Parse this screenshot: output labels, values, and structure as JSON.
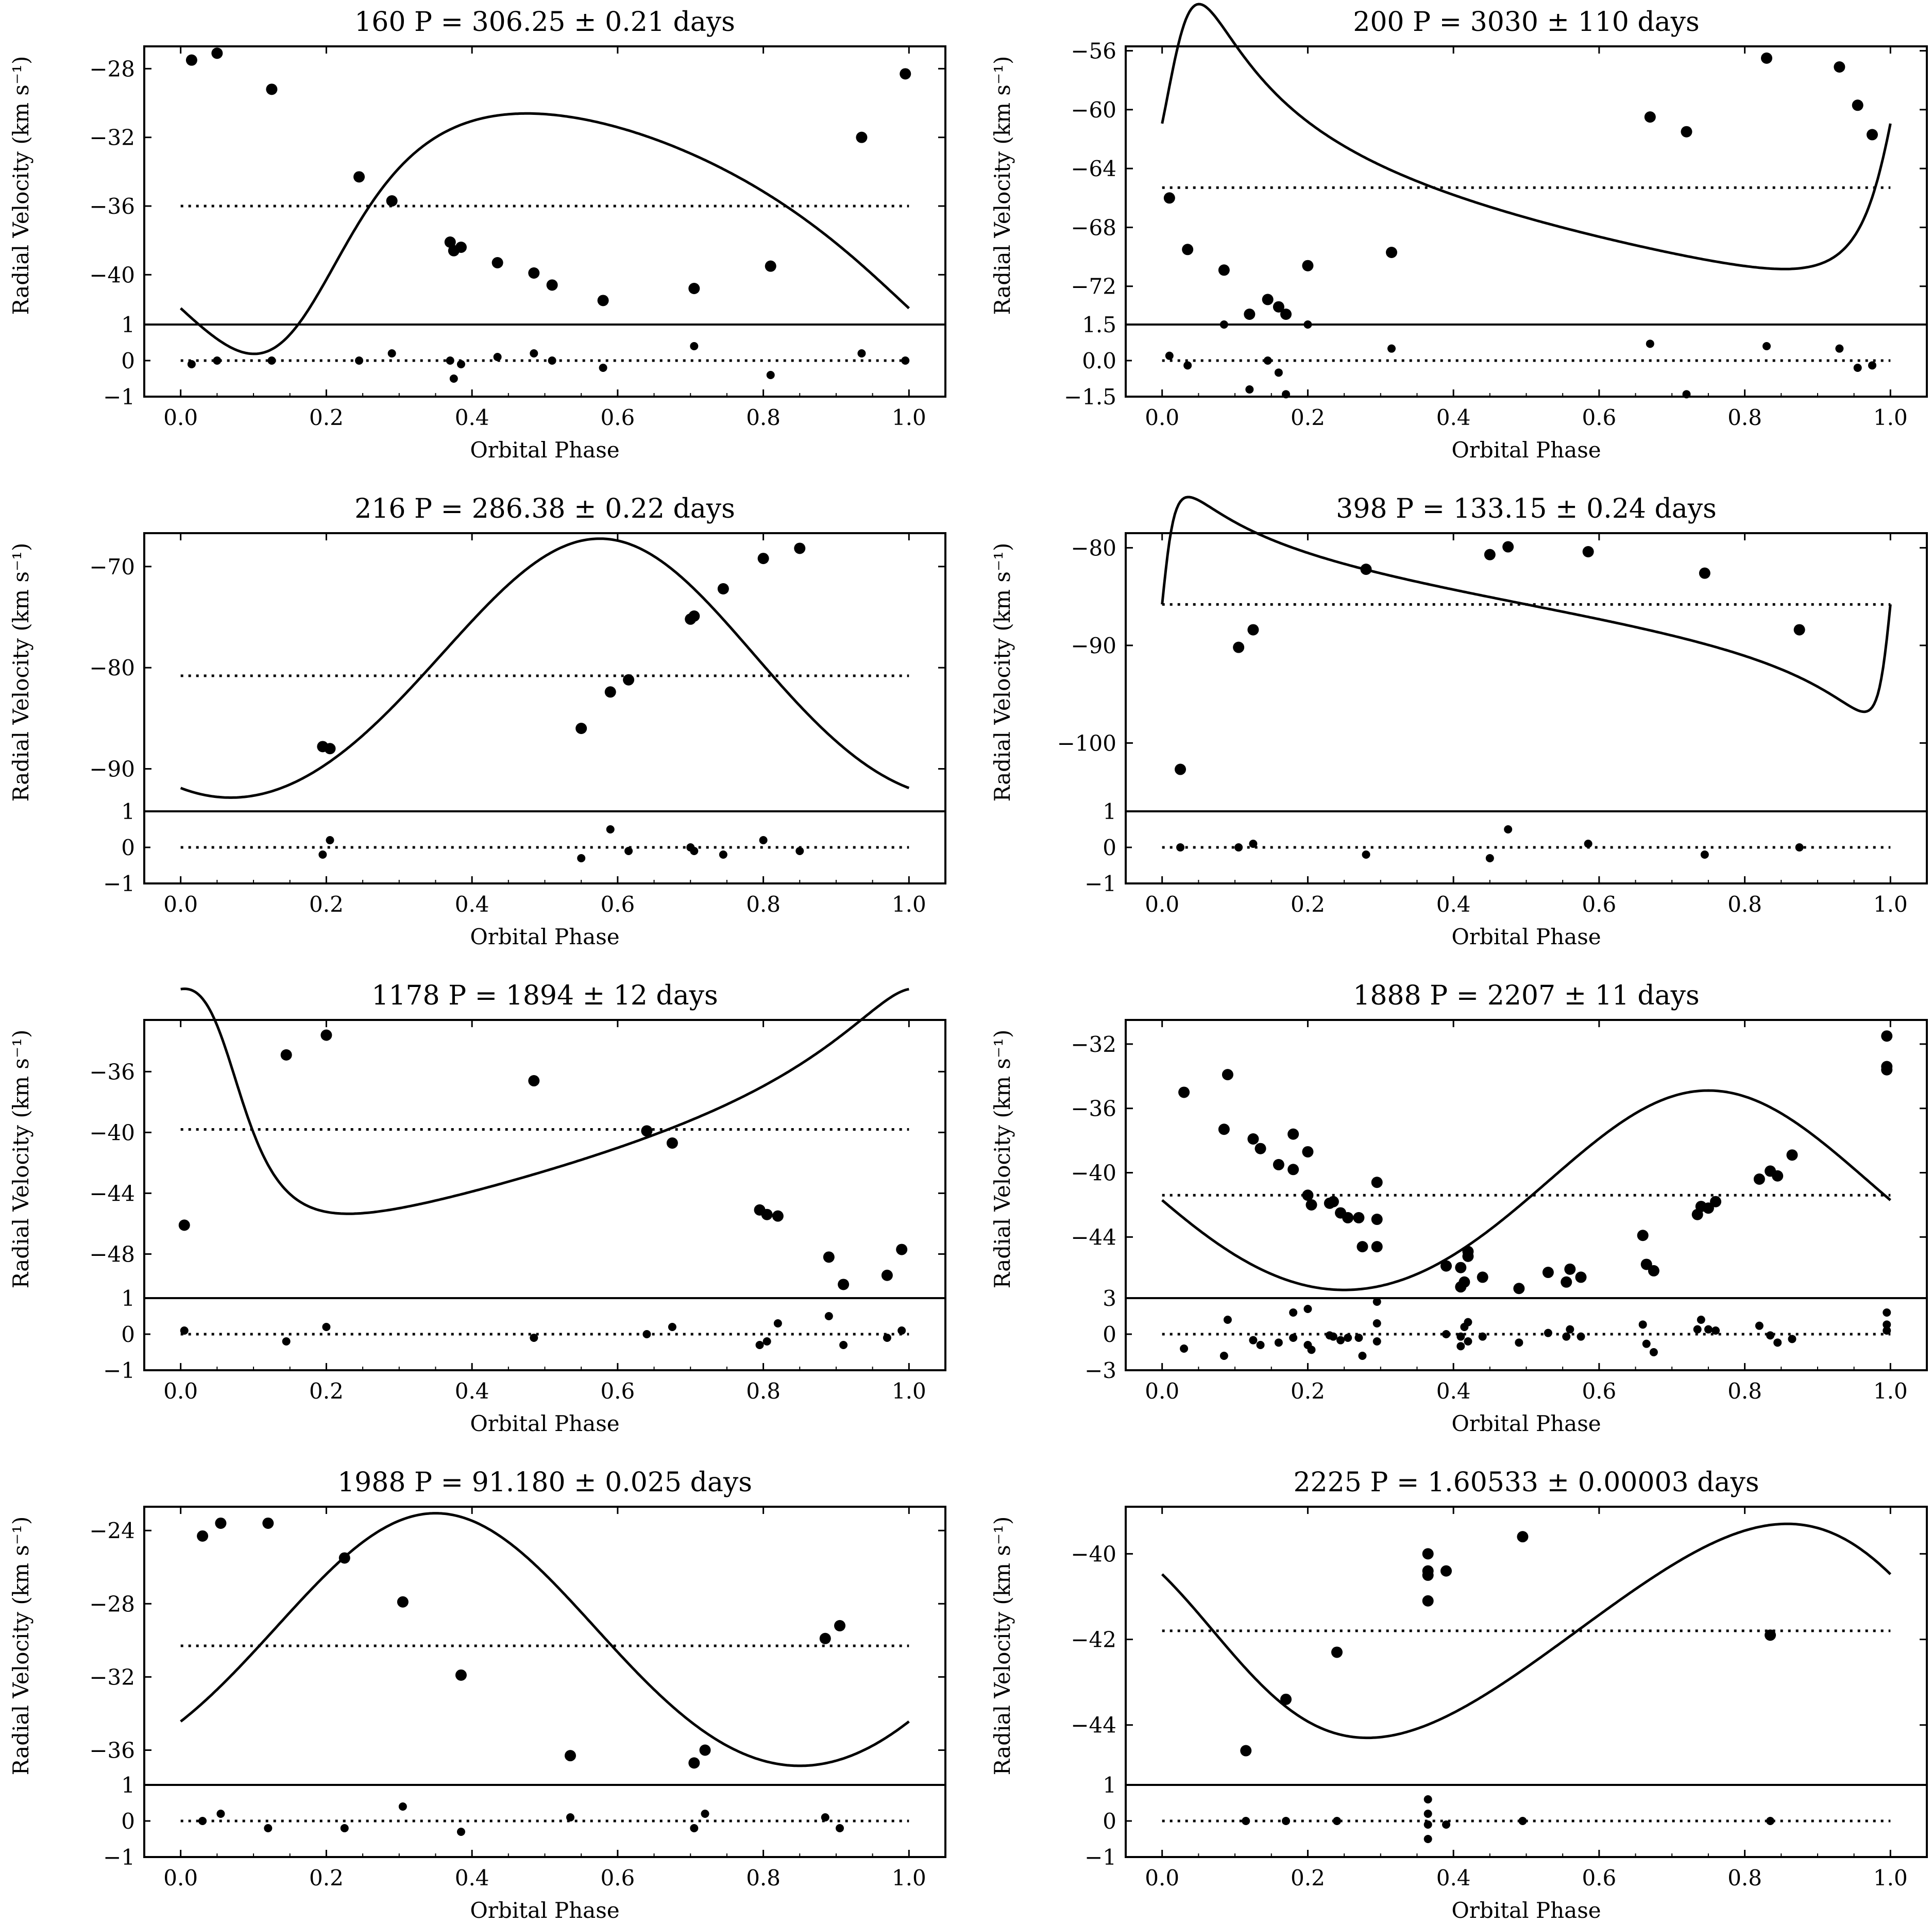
{
  "figure": {
    "xlabel": "Orbital Phase",
    "ylabel": "Radial Velocity (km s⁻¹)",
    "xticks": [
      0.0,
      0.2,
      0.4,
      0.6,
      0.8,
      1.0
    ]
  },
  "chart_data": [
    {
      "type": "scatter",
      "title": "160 P =  306.25  ±  0.21  days",
      "star": "160",
      "period": "306.25 ± 0.21 days",
      "xlabel": "Orbital Phase",
      "ylabel": "Radial Velocity (km s⁻¹)",
      "xlim": [
        -0.05,
        1.05
      ],
      "ylim": [
        -42.9,
        -26.7
      ],
      "yticks": [
        -40,
        -36,
        -32,
        -28
      ],
      "systemic_velocity": -36.0,
      "curve": {
        "K": 7.0,
        "e": 0.3,
        "omega_deg": 220,
        "phi_peri": 0.16
      },
      "points": [
        [
          0.015,
          -27.5
        ],
        [
          0.05,
          -27.1
        ],
        [
          0.125,
          -29.2
        ],
        [
          0.245,
          -34.3
        ],
        [
          0.29,
          -35.7
        ],
        [
          0.37,
          -38.1
        ],
        [
          0.375,
          -38.6
        ],
        [
          0.385,
          -38.4
        ],
        [
          0.435,
          -39.3
        ],
        [
          0.485,
          -39.9
        ],
        [
          0.51,
          -40.6
        ],
        [
          0.58,
          -41.5
        ],
        [
          0.705,
          -40.8
        ],
        [
          0.81,
          -39.5
        ],
        [
          0.935,
          -32.0
        ],
        [
          0.995,
          -28.3
        ]
      ],
      "residual_ylim": [
        -1,
        1
      ],
      "residual_yticks": [
        -1,
        0,
        1
      ],
      "residuals": [
        [
          0.015,
          -0.1
        ],
        [
          0.05,
          0.0
        ],
        [
          0.125,
          0.0
        ],
        [
          0.245,
          0.0
        ],
        [
          0.29,
          0.2
        ],
        [
          0.37,
          0.0
        ],
        [
          0.375,
          -0.5
        ],
        [
          0.385,
          -0.1
        ],
        [
          0.435,
          0.1
        ],
        [
          0.485,
          0.2
        ],
        [
          0.51,
          0.0
        ],
        [
          0.58,
          -0.2
        ],
        [
          0.705,
          0.4
        ],
        [
          0.81,
          -0.4
        ],
        [
          0.935,
          0.2
        ],
        [
          0.995,
          0.0
        ]
      ]
    },
    {
      "type": "scatter",
      "title": "200 P =  3030  ±  110  days",
      "star": "200",
      "period": "3030 ± 110 days",
      "xlabel": "Orbital Phase",
      "ylabel": "Radial Velocity (km s⁻¹)",
      "xlim": [
        -0.05,
        1.05
      ],
      "ylim": [
        -74.6,
        -55.7
      ],
      "yticks": [
        -72,
        -68,
        -64,
        -60,
        -56
      ],
      "systemic_velocity": -65.3,
      "curve": {
        "K": 9.0,
        "e": 0.6,
        "omega_deg": 310,
        "phi_peri": 0.02
      },
      "points": [
        [
          0.01,
          -66.0
        ],
        [
          0.035,
          -69.5
        ],
        [
          0.085,
          -70.9
        ],
        [
          0.12,
          -73.9
        ],
        [
          0.145,
          -72.9
        ],
        [
          0.16,
          -73.4
        ],
        [
          0.17,
          -73.9
        ],
        [
          0.2,
          -70.6
        ],
        [
          0.315,
          -69.7
        ],
        [
          0.67,
          -60.5
        ],
        [
          0.72,
          -61.5
        ],
        [
          0.83,
          -56.5
        ],
        [
          0.93,
          -57.1
        ],
        [
          0.955,
          -59.7
        ],
        [
          0.975,
          -61.7
        ]
      ],
      "residual_ylim": [
        -1.5,
        1.5
      ],
      "residual_yticks": [
        -1.5,
        0.0,
        1.5
      ],
      "residuals": [
        [
          0.01,
          0.2
        ],
        [
          0.035,
          -0.2
        ],
        [
          0.085,
          1.5
        ],
        [
          0.12,
          -1.2
        ],
        [
          0.145,
          0.0
        ],
        [
          0.16,
          -0.5
        ],
        [
          0.17,
          -1.4
        ],
        [
          0.2,
          1.5
        ],
        [
          0.315,
          0.5
        ],
        [
          0.67,
          0.7
        ],
        [
          0.72,
          -1.4
        ],
        [
          0.83,
          0.6
        ],
        [
          0.93,
          0.5
        ],
        [
          0.955,
          -0.3
        ],
        [
          0.975,
          -0.2
        ]
      ]
    },
    {
      "type": "scatter",
      "title": "216 P =  286.38  ±  0.22  days",
      "star": "216",
      "period": "286.38 ± 0.22 days",
      "xlabel": "Orbital Phase",
      "ylabel": "Radial Velocity (km s⁻¹)",
      "xlim": [
        -0.05,
        1.05
      ],
      "ylim": [
        -94.2,
        -66.7
      ],
      "yticks": [
        -90,
        -80,
        -70
      ],
      "systemic_velocity": -80.8,
      "curve": {
        "K": 12.8,
        "e": 0.06,
        "omega_deg": 10,
        "phi_peri": 0.6
      },
      "points": [
        [
          0.195,
          -87.8
        ],
        [
          0.205,
          -88.0
        ],
        [
          0.55,
          -86.0
        ],
        [
          0.59,
          -82.4
        ],
        [
          0.615,
          -81.2
        ],
        [
          0.7,
          -75.2
        ],
        [
          0.705,
          -74.9
        ],
        [
          0.745,
          -72.2
        ],
        [
          0.8,
          -69.2
        ],
        [
          0.85,
          -68.2
        ]
      ],
      "residual_ylim": [
        -1,
        1
      ],
      "residual_yticks": [
        -1,
        0,
        1
      ],
      "residuals": [
        [
          0.195,
          -0.2
        ],
        [
          0.205,
          0.2
        ],
        [
          0.55,
          -0.3
        ],
        [
          0.59,
          0.5
        ],
        [
          0.615,
          -0.1
        ],
        [
          0.7,
          0.0
        ],
        [
          0.705,
          -0.1
        ],
        [
          0.745,
          -0.2
        ],
        [
          0.8,
          0.2
        ],
        [
          0.85,
          -0.1
        ]
      ]
    },
    {
      "type": "scatter",
      "title": "398 P =  133.15  ±  0.24  days",
      "star": "398",
      "period": "133.15 ± 0.24 days",
      "xlabel": "Orbital Phase",
      "ylabel": "Radial Velocity (km s⁻¹)",
      "xlim": [
        -0.05,
        1.05
      ],
      "ylim": [
        -107.0,
        -78.5
      ],
      "yticks": [
        -100,
        -90,
        -80
      ],
      "systemic_velocity": -85.8,
      "curve": {
        "K": 11.0,
        "e": 0.75,
        "omega_deg": 270,
        "phi_peri": 0.0
      },
      "points": [
        [
          0.025,
          -102.7
        ],
        [
          0.105,
          -90.2
        ],
        [
          0.125,
          -88.4
        ],
        [
          0.28,
          -82.2
        ],
        [
          0.45,
          -80.7
        ],
        [
          0.475,
          -79.9
        ],
        [
          0.585,
          -80.4
        ],
        [
          0.745,
          -82.6
        ],
        [
          0.875,
          -88.4
        ]
      ],
      "residual_ylim": [
        -1,
        1
      ],
      "residual_yticks": [
        -1,
        0,
        1
      ],
      "residuals": [
        [
          0.025,
          0.0
        ],
        [
          0.105,
          0.0
        ],
        [
          0.125,
          0.1
        ],
        [
          0.28,
          -0.2
        ],
        [
          0.45,
          -0.3
        ],
        [
          0.475,
          0.5
        ],
        [
          0.585,
          0.1
        ],
        [
          0.745,
          -0.2
        ],
        [
          0.875,
          0.0
        ]
      ]
    },
    {
      "type": "scatter",
      "title": "1178 P =  1894  ±  12  days",
      "star": "1178",
      "period": "1894 ± 12 days",
      "xlabel": "Orbital Phase",
      "ylabel": "Radial Velocity (km s⁻¹)",
      "xlim": [
        -0.05,
        1.05
      ],
      "ylim": [
        -50.9,
        -32.6
      ],
      "yticks": [
        -48,
        -44,
        -40,
        -36
      ],
      "systemic_velocity": -39.8,
      "curve": {
        "K": 7.4,
        "e": 0.5,
        "omega_deg": 60,
        "phi_peri": 0.06
      },
      "points": [
        [
          0.005,
          -46.1
        ],
        [
          0.145,
          -34.9
        ],
        [
          0.2,
          -33.6
        ],
        [
          0.485,
          -36.6
        ],
        [
          0.64,
          -39.9
        ],
        [
          0.675,
          -40.7
        ],
        [
          0.795,
          -45.1
        ],
        [
          0.805,
          -45.4
        ],
        [
          0.82,
          -45.5
        ],
        [
          0.89,
          -48.2
        ],
        [
          0.91,
          -50.0
        ],
        [
          0.97,
          -49.4
        ],
        [
          0.99,
          -47.7
        ]
      ],
      "residual_ylim": [
        -1,
        1
      ],
      "residual_yticks": [
        -1,
        0,
        1
      ],
      "residuals": [
        [
          0.005,
          0.1
        ],
        [
          0.145,
          -0.2
        ],
        [
          0.2,
          0.2
        ],
        [
          0.485,
          -0.1
        ],
        [
          0.64,
          0.0
        ],
        [
          0.675,
          0.2
        ],
        [
          0.795,
          -0.3
        ],
        [
          0.805,
          -0.2
        ],
        [
          0.82,
          0.3
        ],
        [
          0.89,
          0.5
        ],
        [
          0.91,
          -0.3
        ],
        [
          0.97,
          -0.1
        ],
        [
          0.99,
          0.1
        ]
      ]
    },
    {
      "type": "scatter",
      "title": "1888 P =  2207  ±  11  days",
      "star": "1888",
      "period": "2207 ± 11 days",
      "xlabel": "Orbital Phase",
      "ylabel": "Radial Velocity (km s⁻¹)",
      "xlim": [
        -0.05,
        1.05
      ],
      "ylim": [
        -47.8,
        -30.5
      ],
      "yticks": [
        -44,
        -40,
        -36,
        -32
      ],
      "systemic_velocity": -41.4,
      "curve": {
        "K": 6.2,
        "e": 0.05,
        "omega_deg": 0,
        "phi_peri": 0.75
      },
      "points": [
        [
          0.03,
          -35.0
        ],
        [
          0.085,
          -37.3
        ],
        [
          0.09,
          -33.9
        ],
        [
          0.125,
          -37.9
        ],
        [
          0.135,
          -38.5
        ],
        [
          0.16,
          -39.5
        ],
        [
          0.18,
          -39.8
        ],
        [
          0.18,
          -37.6
        ],
        [
          0.2,
          -41.4
        ],
        [
          0.2,
          -38.7
        ],
        [
          0.205,
          -42.0
        ],
        [
          0.23,
          -41.9
        ],
        [
          0.235,
          -41.8
        ],
        [
          0.245,
          -42.5
        ],
        [
          0.255,
          -42.8
        ],
        [
          0.27,
          -42.8
        ],
        [
          0.275,
          -44.6
        ],
        [
          0.295,
          -44.6
        ],
        [
          0.295,
          -42.9
        ],
        [
          0.295,
          -40.6
        ],
        [
          0.39,
          -45.8
        ],
        [
          0.41,
          -45.9
        ],
        [
          0.41,
          -47.1
        ],
        [
          0.415,
          -46.8
        ],
        [
          0.42,
          -45.2
        ],
        [
          0.42,
          -44.9
        ],
        [
          0.44,
          -46.5
        ],
        [
          0.49,
          -47.2
        ],
        [
          0.53,
          -46.2
        ],
        [
          0.555,
          -46.8
        ],
        [
          0.56,
          -46.0
        ],
        [
          0.575,
          -46.5
        ],
        [
          0.66,
          -43.9
        ],
        [
          0.665,
          -45.7
        ],
        [
          0.675,
          -46.1
        ],
        [
          0.735,
          -42.6
        ],
        [
          0.74,
          -42.1
        ],
        [
          0.75,
          -42.2
        ],
        [
          0.76,
          -41.8
        ],
        [
          0.82,
          -40.4
        ],
        [
          0.835,
          -39.9
        ],
        [
          0.845,
          -40.2
        ],
        [
          0.865,
          -38.9
        ],
        [
          0.995,
          -33.6
        ],
        [
          0.995,
          -33.4
        ],
        [
          0.995,
          -31.5
        ]
      ],
      "residual_ylim": [
        -3,
        3
      ],
      "residual_yticks": [
        -3,
        0,
        3
      ],
      "residuals": [
        [
          0.03,
          -1.2
        ],
        [
          0.085,
          -1.8
        ],
        [
          0.09,
          1.2
        ],
        [
          0.125,
          -0.5
        ],
        [
          0.135,
          -0.9
        ],
        [
          0.16,
          -0.7
        ],
        [
          0.18,
          1.8
        ],
        [
          0.18,
          -0.3
        ],
        [
          0.2,
          2.1
        ],
        [
          0.2,
          -0.9
        ],
        [
          0.205,
          -1.3
        ],
        [
          0.23,
          -0.1
        ],
        [
          0.235,
          -0.2
        ],
        [
          0.245,
          -0.5
        ],
        [
          0.255,
          -0.3
        ],
        [
          0.27,
          -0.3
        ],
        [
          0.275,
          -1.8
        ],
        [
          0.295,
          2.7
        ],
        [
          0.295,
          0.9
        ],
        [
          0.295,
          -0.6
        ],
        [
          0.39,
          0.0
        ],
        [
          0.41,
          -0.2
        ],
        [
          0.41,
          -1.0
        ],
        [
          0.415,
          0.6
        ],
        [
          0.42,
          1.0
        ],
        [
          0.42,
          -0.6
        ],
        [
          0.44,
          -0.2
        ],
        [
          0.49,
          -0.7
        ],
        [
          0.53,
          0.1
        ],
        [
          0.555,
          -0.2
        ],
        [
          0.56,
          0.4
        ],
        [
          0.575,
          -0.2
        ],
        [
          0.66,
          0.8
        ],
        [
          0.665,
          -0.8
        ],
        [
          0.675,
          -1.5
        ],
        [
          0.735,
          0.4
        ],
        [
          0.74,
          1.2
        ],
        [
          0.75,
          0.4
        ],
        [
          0.76,
          0.3
        ],
        [
          0.82,
          0.7
        ],
        [
          0.835,
          -0.1
        ],
        [
          0.845,
          -0.7
        ],
        [
          0.865,
          -0.4
        ],
        [
          0.995,
          1.8
        ],
        [
          0.995,
          0.8
        ],
        [
          0.995,
          0.3
        ]
      ]
    },
    {
      "type": "scatter",
      "title": "1988 P =  91.180  ±  0.025  days",
      "star": "1988",
      "period": "91.180 ± 0.025 days",
      "xlabel": "Orbital Phase",
      "ylabel": "Radial Velocity (km s⁻¹)",
      "xlim": [
        -0.05,
        1.05
      ],
      "ylim": [
        -37.9,
        -22.7
      ],
      "yticks": [
        -36,
        -32,
        -28,
        -24
      ],
      "systemic_velocity": -30.3,
      "curve": {
        "K": 6.9,
        "e": 0.05,
        "omega_deg": 0,
        "phi_peri": 0.35
      },
      "points": [
        [
          0.03,
          -24.3
        ],
        [
          0.055,
          -23.6
        ],
        [
          0.12,
          -23.6
        ],
        [
          0.225,
          -25.5
        ],
        [
          0.305,
          -27.9
        ],
        [
          0.385,
          -31.9
        ],
        [
          0.535,
          -36.3
        ],
        [
          0.705,
          -36.7
        ],
        [
          0.72,
          -36.0
        ],
        [
          0.885,
          -29.9
        ],
        [
          0.905,
          -29.2
        ]
      ],
      "residual_ylim": [
        -1,
        1
      ],
      "residual_yticks": [
        -1,
        0,
        1
      ],
      "residuals": [
        [
          0.03,
          0.0
        ],
        [
          0.055,
          0.2
        ],
        [
          0.12,
          -0.2
        ],
        [
          0.225,
          -0.2
        ],
        [
          0.305,
          0.4
        ],
        [
          0.385,
          -0.3
        ],
        [
          0.535,
          0.1
        ],
        [
          0.705,
          -0.2
        ],
        [
          0.72,
          0.2
        ],
        [
          0.885,
          0.1
        ],
        [
          0.905,
          -0.2
        ]
      ]
    },
    {
      "type": "scatter",
      "title": "2225 P =  1.60533  ±  0.00003  days",
      "star": "2225",
      "period": "1.60533 ± 0.00003 days",
      "xlabel": "Orbital Phase",
      "ylabel": "Radial Velocity (km s⁻¹)",
      "xlim": [
        -0.05,
        1.05
      ],
      "ylim": [
        -45.4,
        -38.9
      ],
      "yticks": [
        -44,
        -42,
        -40
      ],
      "systemic_velocity": -41.8,
      "curve": {
        "K": 2.5,
        "e": 0.12,
        "omega_deg": 90,
        "phi_peri": 0.07
      },
      "points": [
        [
          0.115,
          -44.6
        ],
        [
          0.17,
          -43.4
        ],
        [
          0.24,
          -42.3
        ],
        [
          0.365,
          -40.5
        ],
        [
          0.365,
          -40.4
        ],
        [
          0.365,
          -41.1
        ],
        [
          0.365,
          -40.0
        ],
        [
          0.39,
          -40.4
        ],
        [
          0.495,
          -39.6
        ],
        [
          0.835,
          -41.9
        ]
      ],
      "residual_ylim": [
        -1,
        1
      ],
      "residual_yticks": [
        -1,
        0,
        1
      ],
      "residuals": [
        [
          0.115,
          0.0
        ],
        [
          0.17,
          0.0
        ],
        [
          0.24,
          0.0
        ],
        [
          0.365,
          0.6
        ],
        [
          0.365,
          0.2
        ],
        [
          0.365,
          -0.1
        ],
        [
          0.365,
          -0.5
        ],
        [
          0.39,
          -0.1
        ],
        [
          0.495,
          0.0
        ],
        [
          0.835,
          0.0
        ]
      ]
    }
  ]
}
